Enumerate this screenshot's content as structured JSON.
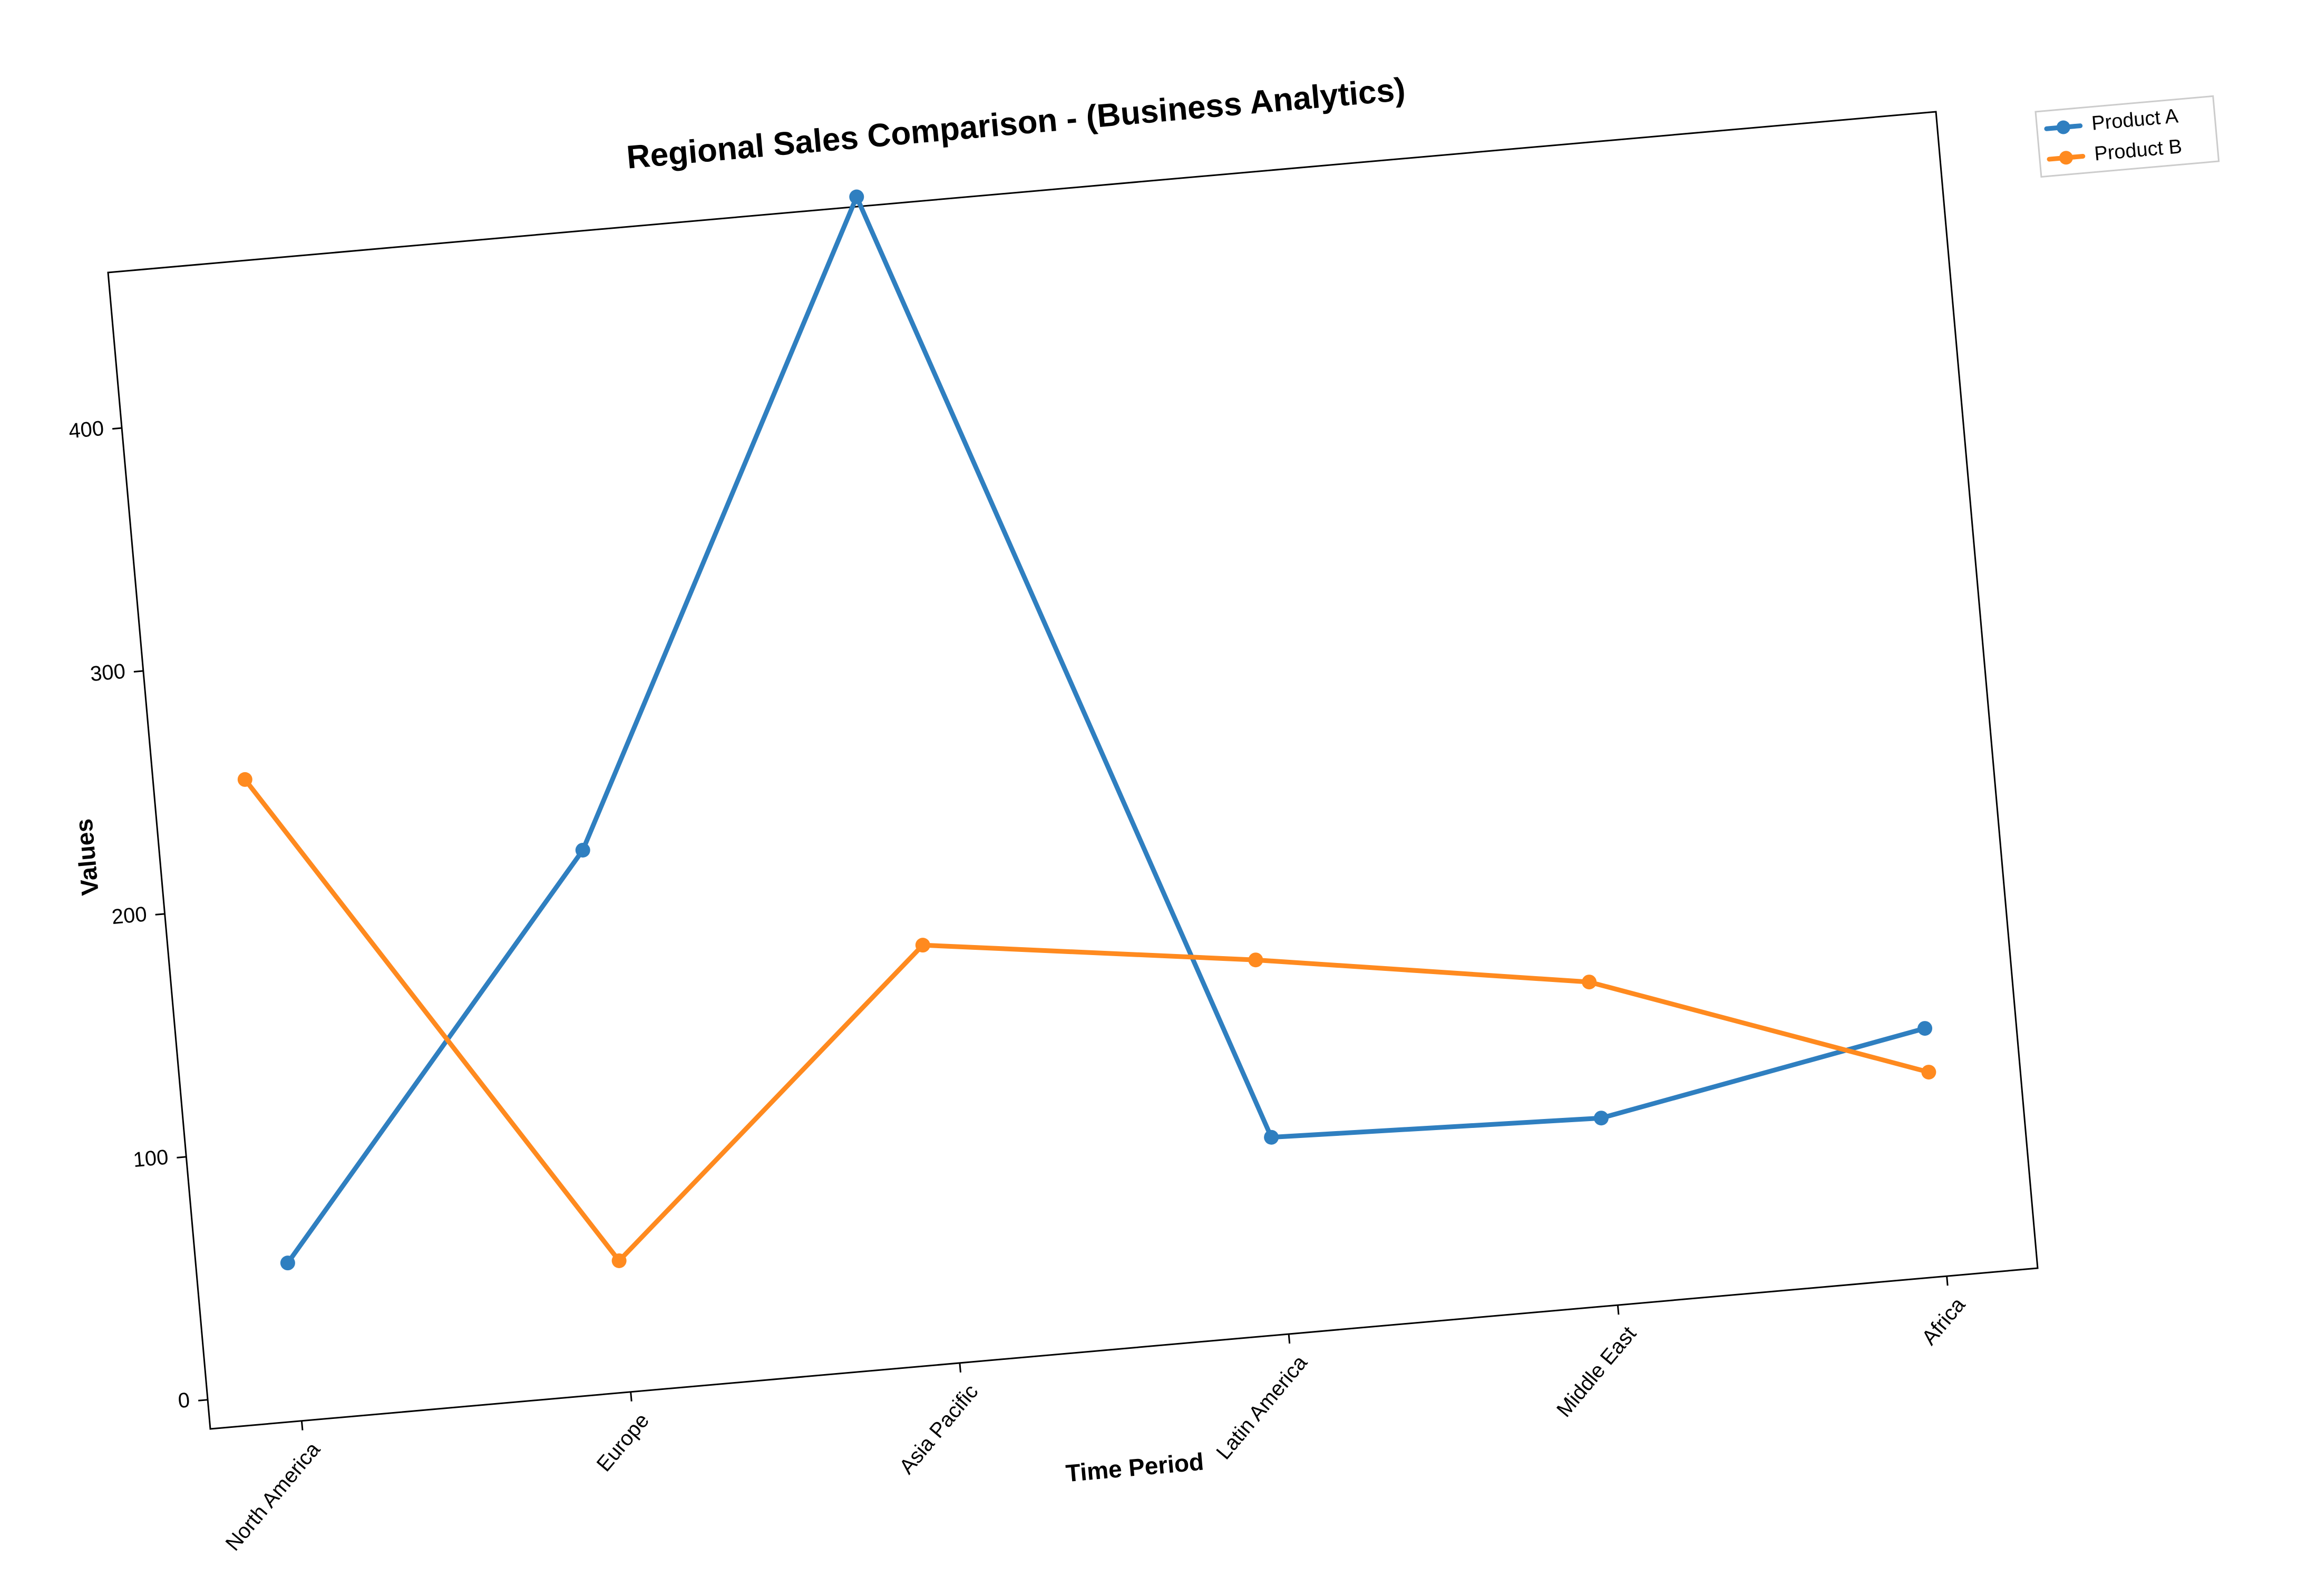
{
  "chart_data": {
    "type": "line",
    "title": "Regional Sales Comparison - (Business Analytics)",
    "xlabel": "Time Period",
    "ylabel": "Values",
    "categories": [
      "North America",
      "Europe",
      "Asia Pacific",
      "Latin America",
      "Middle East",
      "Africa"
    ],
    "ylim": [
      -12,
      464
    ],
    "yticks": [
      0,
      100,
      200,
      300,
      400
    ],
    "grid": false,
    "legend": "top-right, outside plot",
    "series": [
      {
        "name": "Product A",
        "color": "#2f7fc0",
        "values": [
          53,
          211,
          468,
          69,
          65,
          90
        ]
      },
      {
        "name": "Product B",
        "color": "#ff8a1f",
        "values": [
          252,
          42,
          160,
          142,
          121,
          72
        ]
      }
    ]
  }
}
